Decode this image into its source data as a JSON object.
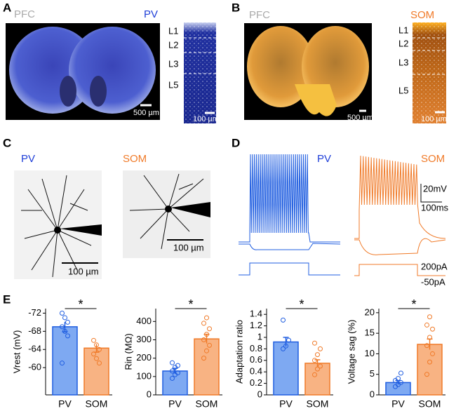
{
  "panels": {
    "A": {
      "label": "A",
      "region": "PFC",
      "cell_type": "PV",
      "scale_image": "500 µm",
      "scale_strip": "100 µm",
      "layers": [
        "L1",
        "L2",
        "L3",
        "L5"
      ]
    },
    "B": {
      "label": "B",
      "region": "PFC",
      "cell_type": "SOM",
      "scale_image": "500 µm",
      "scale_strip": "100 µm",
      "layers": [
        "L1",
        "L2",
        "L3",
        "L5"
      ]
    },
    "C": {
      "label": "C",
      "cell_types": [
        "PV",
        "SOM"
      ],
      "scales": [
        "100 µm",
        "100 µm"
      ]
    },
    "D": {
      "label": "D",
      "cell_types": [
        "PV",
        "SOM"
      ],
      "scale_voltage": "20mV",
      "scale_time": "100ms",
      "current_steps": [
        "200pA",
        "-50pA"
      ]
    },
    "E": {
      "label": "E"
    }
  },
  "chart_data": [
    {
      "type": "bar",
      "ylabel": "Vrest (mV)",
      "categories": [
        "PV",
        "SOM"
      ],
      "values": [
        -69,
        -64.3
      ],
      "errors": [
        1.1,
        0.9
      ],
      "points": [
        [
          -72,
          -71,
          -70,
          -69,
          -68,
          -67,
          -61
        ],
        [
          -66,
          -65,
          -64,
          -63,
          -62,
          -61
        ]
      ],
      "colors": [
        "#1f5de0",
        "#f07a28"
      ],
      "fills": [
        "#7ea9f2",
        "#f8b383"
      ],
      "ylim": [
        -54,
        -73
      ],
      "yticks": [
        -72,
        -68,
        -64,
        -60
      ],
      "significance": "*"
    },
    {
      "type": "bar",
      "ylabel": "Rin (MΩ)",
      "categories": [
        "PV",
        "SOM"
      ],
      "values": [
        130,
        305
      ],
      "errors": [
        15,
        25
      ],
      "points": [
        [
          90,
          110,
          120,
          130,
          150,
          160,
          175
        ],
        [
          200,
          240,
          270,
          300,
          330,
          360,
          390,
          420
        ]
      ],
      "colors": [
        "#1f5de0",
        "#f07a28"
      ],
      "fills": [
        "#7ea9f2",
        "#f8b383"
      ],
      "ylim": [
        0,
        470
      ],
      "yticks": [
        0,
        100,
        200,
        300,
        400
      ],
      "significance": "*"
    },
    {
      "type": "bar",
      "ylabel": "Adaptation ratio",
      "categories": [
        "PV",
        "SOM"
      ],
      "values": [
        0.92,
        0.55
      ],
      "errors": [
        0.08,
        0.06
      ],
      "points": [
        [
          0.8,
          0.85,
          0.95,
          1.3
        ],
        [
          0.35,
          0.45,
          0.5,
          0.6,
          0.7,
          0.8,
          0.9
        ]
      ],
      "colors": [
        "#1f5de0",
        "#f07a28"
      ],
      "fills": [
        "#7ea9f2",
        "#f8b383"
      ],
      "ylim": [
        0,
        1.5
      ],
      "yticks": [
        0,
        0.2,
        0.4,
        0.6,
        0.8,
        1,
        1.2,
        1.4
      ],
      "significance": "*"
    },
    {
      "type": "bar",
      "ylabel": "Voltage sag (%)",
      "categories": [
        "PV",
        "SOM"
      ],
      "values": [
        3,
        12.3
      ],
      "errors": [
        0.5,
        1.3
      ],
      "points": [
        [
          2,
          2.5,
          3,
          3.5,
          4,
          5.3
        ],
        [
          5,
          8,
          10,
          12,
          14,
          16,
          17,
          19
        ]
      ],
      "colors": [
        "#1f5de0",
        "#f07a28"
      ],
      "fills": [
        "#7ea9f2",
        "#f8b383"
      ],
      "ylim": [
        0,
        21
      ],
      "yticks": [
        0,
        5,
        10,
        15,
        20
      ],
      "significance": "*"
    }
  ]
}
